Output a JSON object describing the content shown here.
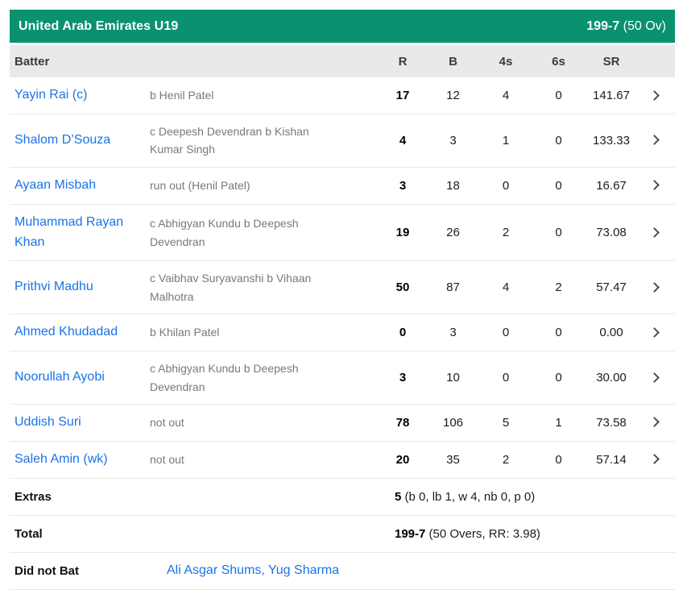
{
  "team_header": {
    "team": "United Arab Emirates U19",
    "score": "199-7",
    "overs": " (50 Ov)"
  },
  "columns": {
    "batter": "Batter",
    "runs": "R",
    "balls": "B",
    "fours": "4s",
    "sixes": "6s",
    "strike_rate": "SR"
  },
  "batters": [
    {
      "name": "Yayin Rai (c)",
      "dismissal": "b Henil Patel",
      "r": "17",
      "b": "12",
      "fours": "4",
      "sixes": "0",
      "sr": "141.67"
    },
    {
      "name": "Shalom D’Souza",
      "dismissal": "c Deepesh Devendran b Kishan Kumar Singh",
      "r": "4",
      "b": "3",
      "fours": "1",
      "sixes": "0",
      "sr": "133.33"
    },
    {
      "name": "Ayaan Misbah",
      "dismissal": "run out (Henil Patel)",
      "r": "3",
      "b": "18",
      "fours": "0",
      "sixes": "0",
      "sr": "16.67"
    },
    {
      "name": "Muhammad Rayan Khan",
      "dismissal": "c Abhigyan Kundu b Deepesh Devendran",
      "r": "19",
      "b": "26",
      "fours": "2",
      "sixes": "0",
      "sr": "73.08"
    },
    {
      "name": "Prithvi Madhu",
      "dismissal": "c Vaibhav Suryavanshi b Vihaan Malhotra",
      "r": "50",
      "b": "87",
      "fours": "4",
      "sixes": "2",
      "sr": "57.47"
    },
    {
      "name": "Ahmed Khudadad",
      "dismissal": "b Khilan Patel",
      "r": "0",
      "b": "3",
      "fours": "0",
      "sixes": "0",
      "sr": "0.00"
    },
    {
      "name": "Noorullah Ayobi",
      "dismissal": "c Abhigyan Kundu b Deepesh Devendran",
      "r": "3",
      "b": "10",
      "fours": "0",
      "sixes": "0",
      "sr": "30.00"
    },
    {
      "name": "Uddish Suri",
      "dismissal": "not out",
      "r": "78",
      "b": "106",
      "fours": "5",
      "sixes": "1",
      "sr": "73.58"
    },
    {
      "name": "Saleh Amin (wk)",
      "dismissal": "not out",
      "r": "20",
      "b": "35",
      "fours": "2",
      "sixes": "0",
      "sr": "57.14"
    }
  ],
  "extras": {
    "label": "Extras",
    "value": "5",
    "detail": " (b 0, lb 1, w 4, nb 0, p 0)"
  },
  "total": {
    "label": "Total",
    "value": "199-7",
    "detail": " (50 Overs, RR: 3.98)"
  },
  "did_not_bat": {
    "label": "Did not Bat",
    "players": "Ali Asgar Shums, Yug Sharma"
  },
  "colors": {
    "header_green": "#0a9170",
    "link_blue": "#1a73e8"
  }
}
